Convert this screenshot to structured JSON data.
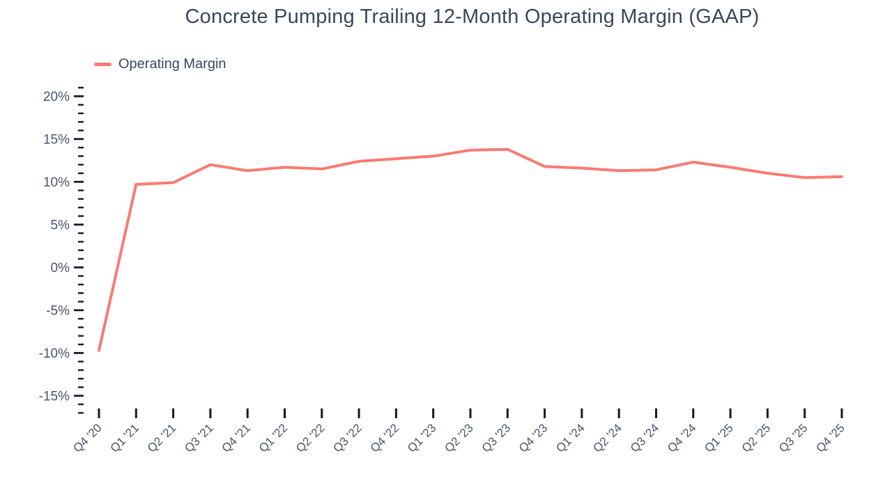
{
  "chart_data": {
    "type": "line",
    "title": "Concrete Pumping Trailing 12-Month Operating Margin (GAAP)",
    "xlabel": "",
    "ylabel": "",
    "categories": [
      "Q4 '20",
      "Q1 '21",
      "Q2 '21",
      "Q3 '21",
      "Q4 '21",
      "Q1 '22",
      "Q2 '22",
      "Q3 '22",
      "Q4 '22",
      "Q1 '23",
      "Q2 '23",
      "Q3 '23",
      "Q4 '23",
      "Q1 '24",
      "Q2 '24",
      "Q3 '24",
      "Q4 '24",
      "Q1 '25",
      "Q2 '25",
      "Q3 '25",
      "Q4 '25"
    ],
    "series": [
      {
        "name": "Operating Margin",
        "color": "#fa7a72",
        "values": [
          -9.7,
          9.7,
          9.9,
          12.0,
          11.3,
          11.7,
          11.5,
          12.4,
          12.7,
          13.0,
          13.7,
          13.8,
          11.8,
          11.6,
          11.3,
          11.4,
          12.3,
          11.7,
          11.0,
          10.5,
          10.6
        ]
      }
    ],
    "yticks_major": [
      20,
      15,
      10,
      5,
      0,
      -5,
      -10,
      -15
    ],
    "ytick_suffix": "%",
    "y_minor_step": 1,
    "ylim": [
      -17,
      21
    ],
    "grid": false,
    "legend_position": "top-left",
    "colors": {
      "axis_tick": "#16191f",
      "axis_label": "#4a5565",
      "title": "#3b4757"
    }
  }
}
